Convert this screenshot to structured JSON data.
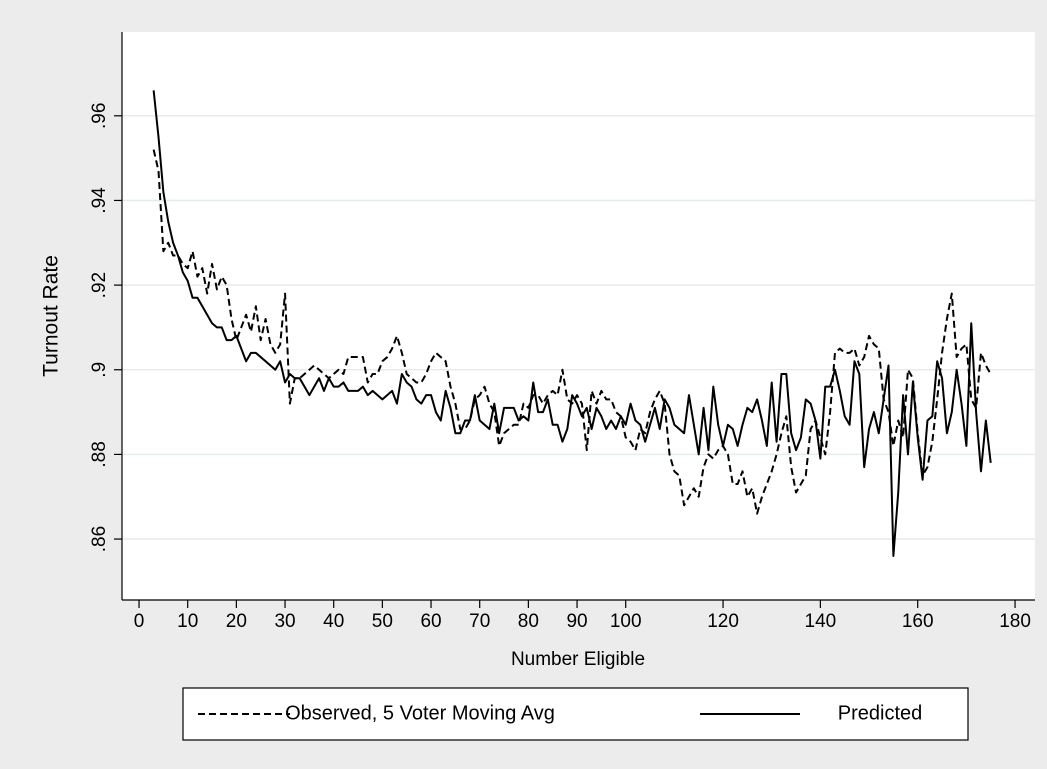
{
  "chart_data": {
    "type": "line",
    "x_label": "Number Eligible",
    "y_label": "Turnout Rate",
    "xlim": [
      -3.5,
      184.1
    ],
    "ylim": [
      0.8456,
      0.9798
    ],
    "xticks": [
      0,
      10,
      20,
      30,
      40,
      50,
      60,
      70,
      80,
      90,
      100,
      120,
      140,
      160,
      180
    ],
    "yticks": [
      {
        "value": 0.86,
        "label": ".86"
      },
      {
        "value": 0.88,
        "label": ".88"
      },
      {
        "value": 0.9,
        "label": ".9"
      },
      {
        "value": 0.92,
        "label": ".92"
      },
      {
        "value": 0.94,
        "label": ".94"
      },
      {
        "value": 0.96,
        "label": ".96"
      }
    ],
    "grid": true,
    "legend": "bottom",
    "x": [
      3,
      4,
      5,
      6,
      7,
      8,
      9,
      10,
      11,
      12,
      13,
      14,
      15,
      16,
      17,
      18,
      19,
      20,
      21,
      22,
      23,
      24,
      25,
      26,
      27,
      28,
      29,
      30,
      31,
      32,
      33,
      34,
      35,
      36,
      37,
      38,
      39,
      40,
      41,
      42,
      43,
      44,
      45,
      46,
      47,
      48,
      49,
      50,
      51,
      52,
      53,
      54,
      55,
      56,
      57,
      58,
      59,
      60,
      61,
      62,
      63,
      64,
      65,
      66,
      67,
      68,
      69,
      70,
      71,
      72,
      73,
      74,
      75,
      76,
      77,
      78,
      79,
      80,
      81,
      82,
      83,
      84,
      85,
      86,
      87,
      88,
      89,
      90,
      91,
      92,
      93,
      94,
      95,
      96,
      97,
      98,
      99,
      100,
      101,
      102,
      103,
      104,
      105,
      106,
      107,
      108,
      109,
      110,
      111,
      112,
      113,
      114,
      115,
      116,
      117,
      118,
      119,
      120,
      121,
      122,
      123,
      124,
      125,
      126,
      127,
      128,
      129,
      130,
      131,
      132,
      133,
      134,
      135,
      136,
      137,
      138,
      139,
      140,
      141,
      142,
      143,
      144,
      145,
      146,
      147,
      148,
      149,
      150,
      151,
      152,
      153,
      154,
      155,
      156,
      157,
      158,
      159,
      160,
      161,
      162,
      163,
      164,
      165,
      166,
      167,
      168,
      169,
      170,
      171,
      172,
      173,
      174,
      175
    ],
    "series": [
      {
        "name": "Observed, 5 Voter Moving Avg",
        "color": "#000000",
        "style": "dashed",
        "values": [
          0.952,
          0.947,
          0.928,
          0.93,
          0.927,
          0.927,
          0.925,
          0.924,
          0.928,
          0.922,
          0.924,
          0.918,
          0.925,
          0.919,
          0.922,
          0.92,
          0.912,
          0.907,
          0.91,
          0.913,
          0.909,
          0.915,
          0.907,
          0.912,
          0.906,
          0.904,
          0.906,
          0.918,
          0.892,
          0.898,
          0.898,
          0.899,
          0.9,
          0.901,
          0.9,
          0.899,
          0.898,
          0.899,
          0.9,
          0.899,
          0.903,
          0.903,
          0.903,
          0.903,
          0.897,
          0.899,
          0.899,
          0.902,
          0.903,
          0.905,
          0.908,
          0.904,
          0.899,
          0.898,
          0.897,
          0.897,
          0.899,
          0.902,
          0.904,
          0.903,
          0.902,
          0.896,
          0.892,
          0.886,
          0.886,
          0.888,
          0.893,
          0.894,
          0.896,
          0.892,
          0.89,
          0.882,
          0.885,
          0.886,
          0.887,
          0.887,
          0.892,
          0.891,
          0.894,
          0.894,
          0.892,
          0.894,
          0.895,
          0.894,
          0.9,
          0.893,
          0.892,
          0.894,
          0.892,
          0.881,
          0.895,
          0.892,
          0.895,
          0.893,
          0.893,
          0.89,
          0.889,
          0.884,
          0.883,
          0.881,
          0.886,
          0.885,
          0.89,
          0.893,
          0.895,
          0.892,
          0.88,
          0.876,
          0.875,
          0.868,
          0.87,
          0.872,
          0.87,
          0.877,
          0.88,
          0.879,
          0.881,
          0.882,
          0.88,
          0.873,
          0.873,
          0.876,
          0.87,
          0.872,
          0.866,
          0.87,
          0.873,
          0.876,
          0.88,
          0.885,
          0.889,
          0.877,
          0.871,
          0.873,
          0.875,
          0.886,
          0.888,
          0.884,
          0.88,
          0.89,
          0.904,
          0.905,
          0.904,
          0.904,
          0.905,
          0.901,
          0.903,
          0.908,
          0.906,
          0.905,
          0.893,
          0.89,
          0.882,
          0.888,
          0.884,
          0.9,
          0.898,
          0.885,
          0.875,
          0.877,
          0.883,
          0.893,
          0.904,
          0.912,
          0.918,
          0.903,
          0.905,
          0.906,
          0.893,
          0.891,
          0.904,
          0.901,
          0.899
        ]
      },
      {
        "name": "Predicted",
        "color": "#000000",
        "style": "solid",
        "values": [
          0.966,
          0.955,
          0.942,
          0.935,
          0.93,
          0.927,
          0.923,
          0.921,
          0.917,
          0.917,
          0.915,
          0.913,
          0.911,
          0.91,
          0.91,
          0.907,
          0.907,
          0.908,
          0.905,
          0.902,
          0.904,
          0.904,
          0.903,
          0.902,
          0.901,
          0.9,
          0.902,
          0.897,
          0.899,
          0.898,
          0.898,
          0.896,
          0.894,
          0.896,
          0.898,
          0.895,
          0.898,
          0.896,
          0.896,
          0.897,
          0.895,
          0.895,
          0.895,
          0.896,
          0.894,
          0.895,
          0.894,
          0.893,
          0.894,
          0.895,
          0.892,
          0.899,
          0.897,
          0.896,
          0.893,
          0.892,
          0.894,
          0.894,
          0.89,
          0.888,
          0.895,
          0.891,
          0.885,
          0.885,
          0.888,
          0.888,
          0.894,
          0.888,
          0.887,
          0.886,
          0.892,
          0.885,
          0.891,
          0.891,
          0.891,
          0.888,
          0.889,
          0.888,
          0.897,
          0.89,
          0.89,
          0.893,
          0.887,
          0.887,
          0.883,
          0.886,
          0.894,
          0.892,
          0.889,
          0.891,
          0.886,
          0.891,
          0.889,
          0.886,
          0.888,
          0.886,
          0.889,
          0.887,
          0.892,
          0.888,
          0.887,
          0.883,
          0.887,
          0.891,
          0.886,
          0.893,
          0.891,
          0.887,
          0.886,
          0.885,
          0.894,
          0.887,
          0.88,
          0.891,
          0.881,
          0.896,
          0.887,
          0.882,
          0.887,
          0.886,
          0.882,
          0.887,
          0.891,
          0.89,
          0.893,
          0.888,
          0.882,
          0.897,
          0.883,
          0.899,
          0.899,
          0.885,
          0.881,
          0.884,
          0.893,
          0.892,
          0.888,
          0.879,
          0.896,
          0.896,
          0.9,
          0.895,
          0.889,
          0.887,
          0.902,
          0.899,
          0.877,
          0.886,
          0.89,
          0.885,
          0.893,
          0.901,
          0.856,
          0.871,
          0.894,
          0.88,
          0.897,
          0.884,
          0.874,
          0.888,
          0.889,
          0.902,
          0.898,
          0.885,
          0.89,
          0.9,
          0.892,
          0.882,
          0.911,
          0.89,
          0.876,
          0.888,
          0.878
        ]
      }
    ]
  }
}
